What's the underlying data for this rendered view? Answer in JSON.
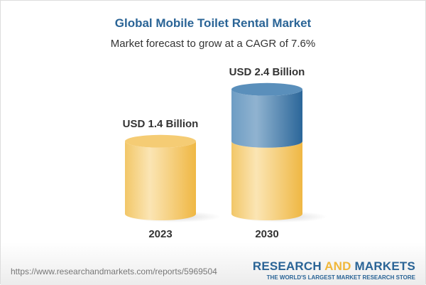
{
  "title": "Global Mobile Toilet Rental Market",
  "subtitle": "Market forecast to grow at a CAGR of 7.6%",
  "chart_data": {
    "type": "bar",
    "style": "3d-cylinder",
    "categories": [
      "2023",
      "2030"
    ],
    "values": [
      1.4,
      2.4
    ],
    "data_labels": [
      "USD 1.4 Billion",
      "USD 2.4 Billion"
    ],
    "unit": "USD Billion",
    "colors": {
      "base": "#f2c35a",
      "growth": "#3f7eaf"
    },
    "grid": false
  },
  "footer": {
    "url": "https://www.researchandmarkets.com/reports/5969504",
    "logo_word1": "RESEARCH",
    "logo_word2": "AND",
    "logo_word3": "MARKETS",
    "tagline": "THE WORLD'S LARGEST MARKET RESEARCH STORE"
  }
}
